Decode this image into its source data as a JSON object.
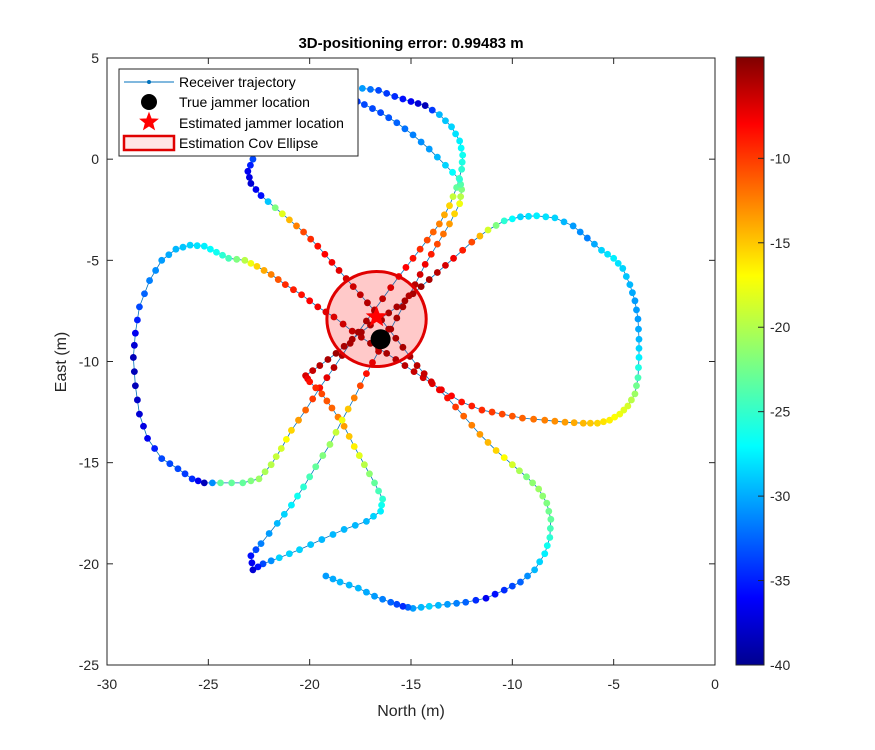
{
  "chart_data": {
    "type": "scatter",
    "title": "3D-positioning error: 0.99483 m",
    "xlabel": "North (m)",
    "ylabel": "East (m)",
    "xlim": [
      -30,
      0
    ],
    "ylim": [
      -25,
      5
    ],
    "xticks": [
      "-30",
      "-25",
      "-20",
      "-15",
      "-10",
      "-5",
      "0"
    ],
    "yticks": [
      "5",
      "0",
      "-5",
      "-10",
      "-15",
      "-20",
      "-25"
    ],
    "grid": false,
    "legend": {
      "position": "top-left",
      "entries": [
        {
          "label": "Receiver trajectory",
          "marker": "line-dot",
          "color": "#0072BD"
        },
        {
          "label": "True jammer location",
          "marker": "filled-circle",
          "color": "#000000"
        },
        {
          "label": "Estimated jammer location",
          "marker": "star",
          "color": "#FF0000"
        },
        {
          "label": "Estimation Cov Ellipse",
          "marker": "ellipse-patch",
          "color": "#FF0000"
        }
      ]
    },
    "colorbar": {
      "colormap": "jet",
      "limits": [
        -40,
        -4
      ],
      "ticks": [
        "-10",
        "-15",
        "-20",
        "-25",
        "-30",
        "-35",
        "-40"
      ]
    },
    "true_jammer": {
      "x": -16.5,
      "y": -8.9
    },
    "estimated_jammer": {
      "x": -16.7,
      "y": -7.8
    },
    "cov_ellipse": {
      "cx": -16.7,
      "cy": -7.9,
      "rx": 2.45,
      "ry": 2.35
    },
    "trajectory": [
      [
        -17.4,
        3.5,
        -30
      ],
      [
        -16.6,
        3.4,
        -33
      ],
      [
        -15.8,
        3.1,
        -34
      ],
      [
        -15.0,
        2.85,
        -36
      ],
      [
        -14.3,
        2.65,
        -38
      ],
      [
        -13.6,
        2.2,
        -29
      ],
      [
        -13.0,
        1.6,
        -28
      ],
      [
        -12.6,
        0.9,
        -27
      ],
      [
        -12.45,
        0.2,
        -26
      ],
      [
        -12.5,
        -0.5,
        -25
      ],
      [
        -12.75,
        -1.4,
        -23
      ],
      [
        -13.1,
        -2.3,
        -16
      ],
      [
        -13.6,
        -3.2,
        -13
      ],
      [
        -14.2,
        -4.0,
        -11
      ],
      [
        -14.9,
        -4.9,
        -9
      ],
      [
        -15.6,
        -5.8,
        -8
      ],
      [
        -16.4,
        -6.9,
        -6
      ],
      [
        -17.2,
        -8.0,
        -5
      ],
      [
        -18.0,
        -9.1,
        -5
      ],
      [
        -18.8,
        -10.3,
        -6
      ],
      [
        -19.5,
        -11.3,
        -9
      ],
      [
        -20.2,
        -12.4,
        -12
      ],
      [
        -20.9,
        -13.4,
        -16
      ],
      [
        -21.4,
        -14.3,
        -19
      ],
      [
        -21.9,
        -15.1,
        -20
      ],
      [
        -22.5,
        -15.8,
        -21
      ],
      [
        -23.3,
        -16.0,
        -23
      ],
      [
        -24.4,
        -16.0,
        -23
      ],
      [
        -25.2,
        -16.0,
        -38
      ],
      [
        -25.8,
        -15.8,
        -34
      ],
      [
        -26.5,
        -15.3,
        -33
      ],
      [
        -27.3,
        -14.8,
        -33
      ],
      [
        -28.0,
        -13.8,
        -36
      ],
      [
        -28.4,
        -12.6,
        -37
      ],
      [
        -28.6,
        -11.2,
        -38
      ],
      [
        -28.7,
        -9.8,
        -38
      ],
      [
        -28.6,
        -8.6,
        -36
      ],
      [
        -28.4,
        -7.3,
        -33
      ],
      [
        -27.9,
        -6.0,
        -31
      ],
      [
        -27.3,
        -5.0,
        -30
      ],
      [
        -26.6,
        -4.45,
        -29
      ],
      [
        -25.9,
        -4.25,
        -28
      ],
      [
        -25.2,
        -4.3,
        -27
      ],
      [
        -24.6,
        -4.6,
        -26
      ],
      [
        -24.0,
        -4.9,
        -24
      ],
      [
        -23.2,
        -5.0,
        -20
      ],
      [
        -22.6,
        -5.3,
        -16
      ],
      [
        -21.9,
        -5.7,
        -13
      ],
      [
        -21.2,
        -6.2,
        -10
      ],
      [
        -20.4,
        -6.7,
        -9
      ],
      [
        -19.6,
        -7.3,
        -8
      ],
      [
        -18.8,
        -7.8,
        -7
      ],
      [
        -17.9,
        -8.5,
        -6
      ],
      [
        -17.0,
        -9.1,
        -5
      ],
      [
        -16.2,
        -9.6,
        -5
      ],
      [
        -15.3,
        -10.2,
        -6
      ],
      [
        -14.4,
        -10.8,
        -7
      ],
      [
        -13.5,
        -11.4,
        -8
      ],
      [
        -12.5,
        -12.0,
        -9
      ],
      [
        -11.5,
        -12.4,
        -10
      ],
      [
        -10.5,
        -12.6,
        -11
      ],
      [
        -9.5,
        -12.8,
        -12
      ],
      [
        -8.4,
        -12.9,
        -13
      ],
      [
        -7.4,
        -13.0,
        -14
      ],
      [
        -6.5,
        -13.05,
        -15
      ],
      [
        -5.8,
        -13.05,
        -16
      ],
      [
        -5.2,
        -12.9,
        -17
      ],
      [
        -4.7,
        -12.6,
        -18
      ],
      [
        -4.3,
        -12.2,
        -19
      ],
      [
        -3.95,
        -11.6,
        -21
      ],
      [
        -3.8,
        -10.8,
        -24
      ],
      [
        -3.75,
        -9.8,
        -27
      ],
      [
        -3.75,
        -8.9,
        -29
      ],
      [
        -3.8,
        -7.9,
        -30
      ],
      [
        -3.95,
        -7.0,
        -30
      ],
      [
        -4.2,
        -6.2,
        -29
      ],
      [
        -4.55,
        -5.4,
        -28
      ],
      [
        -5.0,
        -4.9,
        -27
      ],
      [
        -5.6,
        -4.5,
        -28
      ],
      [
        -6.3,
        -3.9,
        -31
      ],
      [
        -7.0,
        -3.3,
        -30
      ],
      [
        -7.9,
        -2.9,
        -28
      ],
      [
        -8.8,
        -2.8,
        -27
      ],
      [
        -9.6,
        -2.85,
        -28
      ],
      [
        -10.4,
        -3.05,
        -25
      ],
      [
        -11.2,
        -3.5,
        -19
      ],
      [
        -12.0,
        -4.1,
        -11
      ],
      [
        -12.9,
        -4.9,
        -8
      ],
      [
        -13.7,
        -5.6,
        -6
      ],
      [
        -14.5,
        -6.3,
        -5
      ],
      [
        -15.3,
        -7.0,
        -5
      ],
      [
        -16.1,
        -7.6,
        -5
      ],
      [
        -17.0,
        -8.2,
        -5
      ],
      [
        -17.9,
        -8.9,
        -5
      ],
      [
        -18.7,
        -9.6,
        -5
      ],
      [
        -19.5,
        -10.2,
        -6
      ],
      [
        -20.2,
        -10.7,
        -7
      ],
      [
        -20.0,
        -11.0,
        -9
      ],
      [
        -19.4,
        -11.6,
        -11
      ],
      [
        -18.9,
        -12.3,
        -12
      ],
      [
        -18.3,
        -13.2,
        -14
      ],
      [
        -17.8,
        -14.2,
        -17
      ],
      [
        -17.3,
        -15.1,
        -20
      ],
      [
        -16.8,
        -16.0,
        -23
      ],
      [
        -16.4,
        -16.8,
        -25
      ],
      [
        -16.5,
        -17.4,
        -27
      ],
      [
        -17.2,
        -17.9,
        -29
      ],
      [
        -18.3,
        -18.3,
        -29
      ],
      [
        -19.4,
        -18.8,
        -29
      ],
      [
        -20.5,
        -19.3,
        -28
      ],
      [
        -21.5,
        -19.7,
        -28
      ],
      [
        -22.3,
        -20.0,
        -33
      ],
      [
        -22.8,
        -20.3,
        -37
      ],
      [
        -22.9,
        -19.6,
        -35
      ],
      [
        -22.4,
        -19.0,
        -31
      ],
      [
        -21.6,
        -18.0,
        -29
      ],
      [
        -20.9,
        -17.1,
        -27
      ],
      [
        -20.3,
        -16.2,
        -25
      ],
      [
        -19.7,
        -15.2,
        -23
      ],
      [
        -19.0,
        -14.1,
        -21
      ],
      [
        -18.4,
        -12.9,
        -18
      ],
      [
        -17.8,
        -11.8,
        -13
      ],
      [
        -17.2,
        -10.6,
        -9
      ],
      [
        -16.6,
        -9.5,
        -6
      ],
      [
        -16.0,
        -8.4,
        -5
      ],
      [
        -15.4,
        -7.3,
        -5
      ],
      [
        -14.8,
        -6.2,
        -6
      ],
      [
        -14.3,
        -5.2,
        -8
      ],
      [
        -13.7,
        -4.2,
        -11
      ],
      [
        -13.1,
        -3.2,
        -14
      ],
      [
        -12.6,
        -2.2,
        -18
      ],
      [
        -12.5,
        -1.5,
        -22
      ],
      [
        -12.6,
        -1.0,
        -25
      ],
      [
        -13.3,
        -0.3,
        -28
      ],
      [
        -14.1,
        0.5,
        -30
      ],
      [
        -14.9,
        1.2,
        -31
      ],
      [
        -15.7,
        1.8,
        -32
      ],
      [
        -16.5,
        2.3,
        -33
      ],
      [
        -17.3,
        2.7,
        -33
      ],
      [
        -18.0,
        3.0,
        -34
      ],
      [
        -18.6,
        3.2,
        -35
      ],
      [
        -19.4,
        3.1,
        -36
      ],
      [
        -20.1,
        2.7,
        -33
      ],
      [
        -20.9,
        2.1,
        -30
      ],
      [
        -21.6,
        1.4,
        -29
      ],
      [
        -22.3,
        0.7,
        -30
      ],
      [
        -22.8,
        0.0,
        -33
      ],
      [
        -23.05,
        -0.6,
        -36
      ],
      [
        -22.9,
        -1.2,
        -37
      ],
      [
        -22.4,
        -1.8,
        -35
      ],
      [
        -21.7,
        -2.4,
        -22
      ],
      [
        -21.0,
        -3.0,
        -15
      ],
      [
        -20.3,
        -3.6,
        -11
      ],
      [
        -19.6,
        -4.3,
        -9
      ],
      [
        -18.9,
        -5.1,
        -8
      ],
      [
        -18.2,
        -5.9,
        -7
      ],
      [
        -17.5,
        -6.7,
        -6
      ],
      [
        -16.8,
        -7.5,
        -5
      ],
      [
        -16.1,
        -8.4,
        -5
      ],
      [
        -15.4,
        -9.3,
        -5
      ],
      [
        -14.7,
        -10.2,
        -6
      ],
      [
        -14.0,
        -11.0,
        -7
      ],
      [
        -13.2,
        -11.8,
        -9
      ],
      [
        -12.4,
        -12.7,
        -12
      ],
      [
        -11.6,
        -13.6,
        -14
      ],
      [
        -10.8,
        -14.4,
        -16
      ],
      [
        -10.0,
        -15.1,
        -19
      ],
      [
        -9.3,
        -15.7,
        -22
      ],
      [
        -8.7,
        -16.3,
        -21
      ],
      [
        -8.3,
        -17.0,
        -22
      ],
      [
        -8.1,
        -17.8,
        -23
      ],
      [
        -8.15,
        -18.7,
        -25
      ],
      [
        -8.4,
        -19.5,
        -27
      ],
      [
        -8.9,
        -20.3,
        -29
      ],
      [
        -9.6,
        -20.9,
        -32
      ],
      [
        -10.4,
        -21.3,
        -34
      ],
      [
        -11.3,
        -21.7,
        -36
      ],
      [
        -12.3,
        -21.9,
        -32
      ],
      [
        -13.2,
        -22.0,
        -30
      ],
      [
        -14.1,
        -22.1,
        -28
      ],
      [
        -14.9,
        -22.2,
        -30
      ],
      [
        -15.4,
        -22.1,
        -34
      ],
      [
        -16.0,
        -21.9,
        -32
      ],
      [
        -16.8,
        -21.6,
        -30
      ],
      [
        -17.6,
        -21.2,
        -29
      ],
      [
        -18.5,
        -20.9,
        -29
      ],
      [
        -19.2,
        -20.6,
        -30
      ]
    ]
  }
}
